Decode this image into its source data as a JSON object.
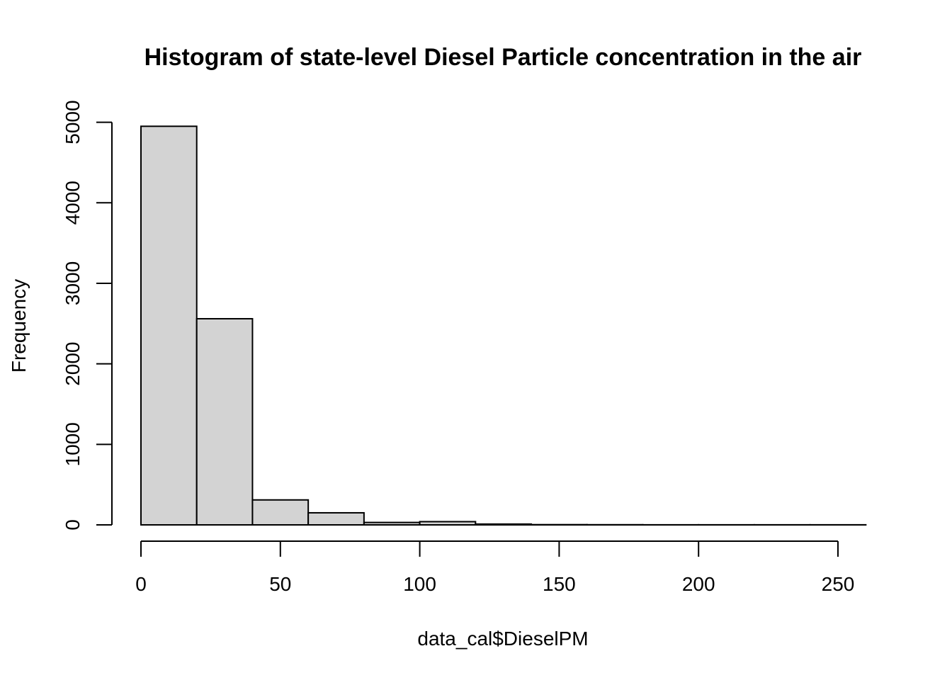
{
  "chart_data": {
    "type": "bar",
    "title": "Histogram of state-level Diesel Particle concentration in the air",
    "xlabel": "data_cal$DieselPM",
    "ylabel": "Frequency",
    "bin_edges": [
      0,
      20,
      40,
      60,
      80,
      100,
      120,
      140,
      160,
      180,
      200,
      220,
      240,
      260
    ],
    "values": [
      4950,
      2560,
      310,
      150,
      30,
      40,
      10,
      3,
      2,
      1,
      1,
      1,
      1
    ],
    "xlim": [
      0,
      260
    ],
    "ylim": [
      0,
      5000
    ],
    "x_ticks": [
      0,
      50,
      100,
      150,
      200,
      250
    ],
    "y_ticks": [
      0,
      1000,
      2000,
      3000,
      4000,
      5000
    ],
    "bar_color": "#d3d3d3",
    "grid": false,
    "legend": "none"
  }
}
